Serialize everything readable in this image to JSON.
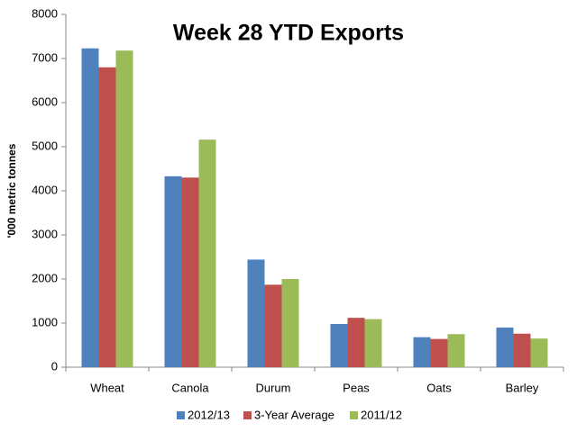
{
  "chart_data": {
    "type": "bar",
    "title": "Week 28 YTD Exports",
    "y_label": "'000 metric tonnes",
    "categories": [
      "Wheat",
      "Canola",
      "Durum",
      "Peas",
      "Oats",
      "Barley"
    ],
    "series": [
      {
        "name": "2012/13",
        "color": "#4f81bd",
        "values": [
          7230,
          4330,
          2440,
          980,
          680,
          900
        ]
      },
      {
        "name": "3-Year Average",
        "color": "#c0504d",
        "values": [
          6800,
          4300,
          1870,
          1120,
          640,
          760
        ]
      },
      {
        "name": "2011/12",
        "color": "#9bbb59",
        "values": [
          7180,
          5160,
          2000,
          1090,
          750,
          650
        ]
      }
    ],
    "ylim": [
      0,
      8000
    ],
    "yticks": [
      0,
      1000,
      2000,
      3000,
      4000,
      5000,
      6000,
      7000,
      8000
    ],
    "grid": false,
    "legend": "bottom"
  }
}
